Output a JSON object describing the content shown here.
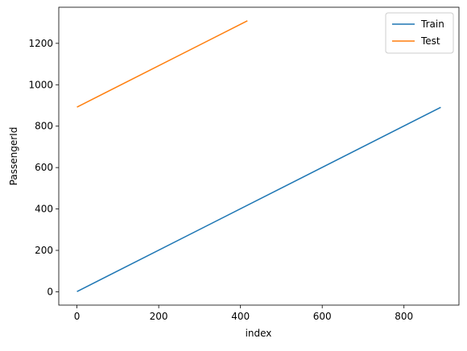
{
  "chart_data": {
    "type": "line",
    "xlabel": "index",
    "ylabel": "PassengerId",
    "series": [
      {
        "name": "Train",
        "color": "#1f77b4",
        "x": [
          0,
          890
        ],
        "values": [
          1,
          891
        ]
      },
      {
        "name": "Test",
        "color": "#ff7f0e",
        "x": [
          0,
          417
        ],
        "values": [
          892,
          1309
        ]
      }
    ],
    "xlim": [
      -44.5,
      934.5
    ],
    "xticks": [
      0,
      200,
      400,
      600,
      800
    ],
    "ylim": [
      -64.4,
      1374.4
    ],
    "yticks": [
      0,
      200,
      400,
      600,
      800,
      1000,
      1200
    ],
    "legend": "upper right",
    "grid": false
  }
}
